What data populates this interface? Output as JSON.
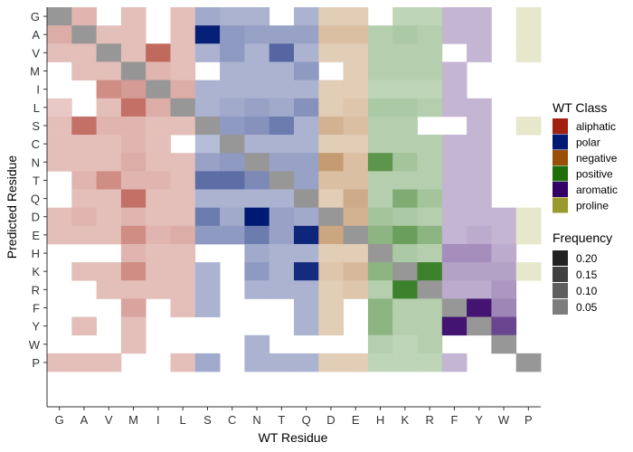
{
  "chart_data": {
    "type": "heatmap",
    "xlabel": "WT Residue",
    "ylabel": "Predicted Residue",
    "x_categories": [
      "G",
      "A",
      "V",
      "M",
      "I",
      "L",
      "S",
      "C",
      "N",
      "T",
      "Q",
      "D",
      "E",
      "H",
      "K",
      "R",
      "F",
      "Y",
      "W",
      "P"
    ],
    "y_categories": [
      "G",
      "A",
      "V",
      "M",
      "I",
      "L",
      "S",
      "C",
      "N",
      "T",
      "Q",
      "D",
      "E",
      "H",
      "K",
      "R",
      "F",
      "Y",
      "W",
      "P"
    ],
    "x_classes": [
      "aliphatic",
      "aliphatic",
      "aliphatic",
      "aliphatic",
      "aliphatic",
      "aliphatic",
      "polar",
      "polar",
      "polar",
      "polar",
      "polar",
      "negative",
      "negative",
      "positive",
      "positive",
      "positive",
      "aromatic",
      "aromatic",
      "aromatic",
      "proline"
    ],
    "values": [
      [
        0.05,
        0.03,
        0,
        0.02,
        0,
        0.02,
        0.04,
        0.03,
        0.03,
        0,
        0.03,
        0.02,
        0.02,
        0,
        0.02,
        0.02,
        0.02,
        0.02,
        0,
        0.01
      ],
      [
        0.04,
        0.05,
        0.02,
        0.02,
        0,
        0.02,
        0.24,
        0.06,
        0.05,
        0.05,
        0.05,
        0.04,
        0.04,
        0.03,
        0.04,
        0.03,
        0.02,
        0.02,
        0,
        0.01
      ],
      [
        0.02,
        0.02,
        0.05,
        0.02,
        0.13,
        0.02,
        0.03,
        0.06,
        0.03,
        0.13,
        0.03,
        0.02,
        0.02,
        0.03,
        0.03,
        0.03,
        0,
        0.02,
        0,
        0.01
      ],
      [
        0,
        0.02,
        0.02,
        0.06,
        0.03,
        0.02,
        0,
        0.03,
        0.03,
        0.03,
        0.06,
        0,
        0.02,
        0.03,
        0.03,
        0.03,
        0.02,
        0,
        0,
        0
      ],
      [
        0,
        0,
        0.08,
        0.06,
        0.05,
        0.04,
        0.03,
        0.03,
        0.03,
        0.03,
        0.03,
        0.02,
        0.02,
        0.02,
        0.02,
        0.02,
        0.02,
        0,
        0,
        0
      ],
      [
        0.01,
        0,
        0.02,
        0.12,
        0.04,
        0.05,
        0.03,
        0.04,
        0.05,
        0.04,
        0.07,
        0.02,
        0.03,
        0.04,
        0.04,
        0.03,
        0.02,
        0.02,
        0,
        0
      ],
      [
        0.02,
        0.12,
        0.03,
        0.03,
        0.02,
        0.02,
        0.05,
        0.06,
        0.07,
        0.1,
        0.03,
        0.06,
        0.04,
        0.03,
        0.03,
        0,
        0,
        0.02,
        0,
        0.01
      ],
      [
        0.02,
        0.02,
        0.02,
        0.03,
        0.02,
        0,
        0.02,
        0.05,
        0.03,
        0.03,
        0.03,
        0.02,
        0.02,
        0.03,
        0.03,
        0.03,
        0.02,
        0.02,
        0,
        0
      ],
      [
        0.02,
        0.02,
        0.02,
        0.04,
        0.02,
        0.02,
        0.05,
        0.06,
        0.05,
        0.05,
        0.05,
        0.1,
        0.04,
        0.15,
        0.05,
        0.03,
        0.02,
        0.02,
        0,
        0
      ],
      [
        0,
        0.03,
        0.08,
        0.03,
        0.03,
        0.02,
        0.12,
        0.12,
        0.08,
        0.05,
        0.05,
        0.04,
        0.04,
        0.03,
        0.03,
        0.03,
        0.02,
        0.02,
        0,
        0
      ],
      [
        0,
        0.02,
        0.02,
        0.12,
        0.02,
        0.02,
        0.03,
        0.03,
        0.03,
        0.03,
        0.06,
        0.02,
        0.07,
        0.03,
        0.1,
        0.05,
        0.02,
        0.02,
        0,
        0
      ],
      [
        0.02,
        0.03,
        0.02,
        0.03,
        0.02,
        0.02,
        0.1,
        0.04,
        0.25,
        0.05,
        0.04,
        0.05,
        0.06,
        0.05,
        0.04,
        0.03,
        0.02,
        0.02,
        0.02,
        0.01
      ],
      [
        0.02,
        0.02,
        0.02,
        0.08,
        0.03,
        0.04,
        0.06,
        0.06,
        0.1,
        0.05,
        0.23,
        0.08,
        0.05,
        0.08,
        0.13,
        0.08,
        0.02,
        0.03,
        0.02,
        0.01
      ],
      [
        0,
        0,
        0,
        0.03,
        0.02,
        0.02,
        0,
        0,
        0.04,
        0.03,
        0.03,
        0.02,
        0.02,
        0.05,
        0.04,
        0.03,
        0.06,
        0.06,
        0.03,
        0
      ],
      [
        0,
        0.02,
        0.02,
        0.08,
        0.02,
        0.02,
        0.03,
        0,
        0.06,
        0.03,
        0.22,
        0.03,
        0.05,
        0.08,
        0.05,
        0.2,
        0.04,
        0.04,
        0.04,
        0.01
      ],
      [
        0,
        0,
        0.02,
        0.02,
        0.02,
        0.02,
        0.03,
        0,
        0.03,
        0.03,
        0.03,
        0.02,
        0.03,
        0.03,
        0.2,
        0.05,
        0.03,
        0.03,
        0.05,
        0
      ],
      [
        0,
        0,
        0,
        0.05,
        0,
        0.02,
        0.03,
        0,
        0,
        0,
        0.03,
        0.02,
        0,
        0.08,
        0.03,
        0.03,
        0.05,
        0.22,
        0.07,
        0
      ],
      [
        0,
        0.02,
        0,
        0.02,
        0,
        0,
        0,
        0,
        0,
        0,
        0.03,
        0.02,
        0,
        0.08,
        0.03,
        0.03,
        0.22,
        0.05,
        0.15,
        0
      ],
      [
        0,
        0,
        0,
        0.02,
        0,
        0,
        0,
        0,
        0.03,
        0,
        0,
        0,
        0,
        0.03,
        0.02,
        0.03,
        0,
        0,
        0.05,
        0
      ],
      [
        0.02,
        0.02,
        0.02,
        0,
        0,
        0.02,
        0.04,
        0,
        0.03,
        0.03,
        0.03,
        0.02,
        0.02,
        0.02,
        0.02,
        0.02,
        0.02,
        0,
        0,
        0.05
      ]
    ],
    "legend_class": {
      "title": "WT Class",
      "items": [
        {
          "label": "aliphatic",
          "color": "#a1200e"
        },
        {
          "label": "polar",
          "color": "#001a73"
        },
        {
          "label": "negative",
          "color": "#9a5107"
        },
        {
          "label": "positive",
          "color": "#1e6e0a"
        },
        {
          "label": "aromatic",
          "color": "#330066"
        },
        {
          "label": "proline",
          "color": "#9a9a2c"
        }
      ]
    },
    "legend_frequency": {
      "title": "Frequency",
      "items": [
        {
          "label": "0.20",
          "value": 0.2
        },
        {
          "label": "0.15",
          "value": 0.15
        },
        {
          "label": "0.10",
          "value": 0.1
        },
        {
          "label": "0.05",
          "value": 0.05
        }
      ]
    },
    "grid": false,
    "legend_position": "right"
  }
}
